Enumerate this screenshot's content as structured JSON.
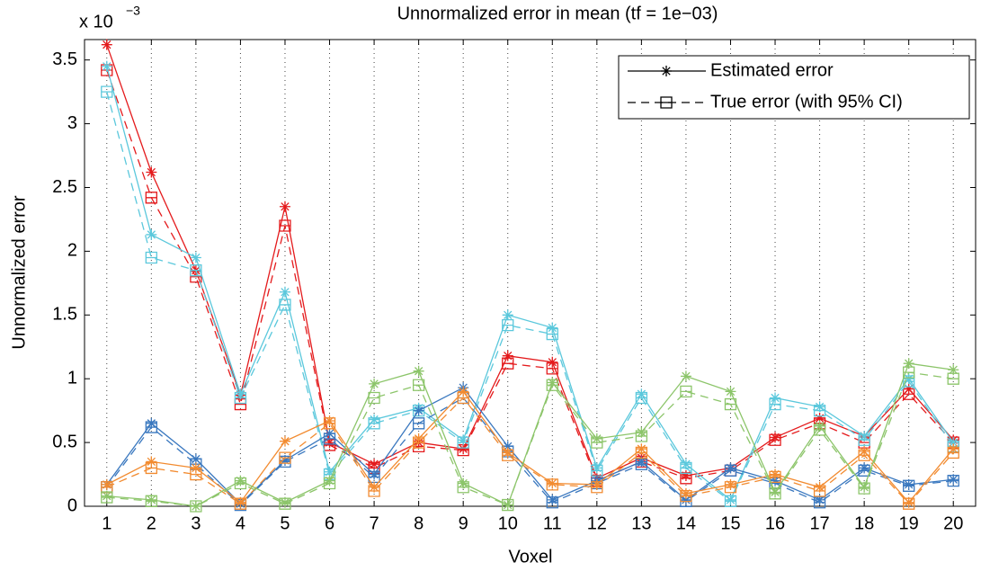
{
  "chart_data": {
    "type": "line",
    "title": "Unnormalized error in mean (tf = 1e−03)",
    "xlabel": "Voxel",
    "ylabel": "Unnormalized error",
    "y_multiplier": "x 10",
    "y_exponent": "−3",
    "x": [
      1,
      2,
      3,
      4,
      5,
      6,
      7,
      8,
      9,
      10,
      11,
      12,
      13,
      14,
      15,
      16,
      17,
      18,
      19,
      20
    ],
    "xlim": [
      0.5,
      20.5
    ],
    "xticks": [
      1,
      2,
      3,
      4,
      5,
      6,
      7,
      8,
      9,
      10,
      11,
      12,
      13,
      14,
      15,
      16,
      17,
      18,
      19,
      20
    ],
    "ylim": [
      0,
      3.66
    ],
    "yticks": [
      0,
      0.5,
      1,
      1.5,
      2,
      2.5,
      3,
      3.5
    ],
    "xgrid": true,
    "legend": {
      "position": "upper right",
      "entries": [
        "Estimated error",
        "True error (with 95% CI)"
      ],
      "line_styles": [
        "solid",
        "dashed"
      ],
      "markers": [
        "asterisk",
        "square"
      ]
    },
    "series": [
      {
        "color": "#e41a1c",
        "line_style": "solid",
        "marker": "asterisk",
        "values": [
          3.62,
          2.62,
          1.85,
          0.87,
          2.35,
          0.5,
          0.33,
          0.5,
          0.45,
          1.18,
          1.13,
          0.22,
          0.38,
          0.24,
          0.3,
          0.54,
          0.69,
          0.55,
          0.92,
          0.52
        ]
      },
      {
        "color": "#e41a1c",
        "line_style": "dashed",
        "marker": "square",
        "values": [
          3.42,
          2.42,
          1.8,
          0.8,
          2.2,
          0.48,
          0.3,
          0.47,
          0.44,
          1.12,
          1.08,
          0.2,
          0.35,
          0.22,
          0.28,
          0.52,
          0.65,
          0.5,
          0.88,
          0.5
        ]
      },
      {
        "color": "#5bc8dc",
        "line_style": "solid",
        "marker": "asterisk",
        "values": [
          3.45,
          2.13,
          1.95,
          0.88,
          1.68,
          0.27,
          0.68,
          0.77,
          0.52,
          1.5,
          1.4,
          0.3,
          0.88,
          0.33,
          0.05,
          0.85,
          0.78,
          0.55,
          1.0,
          0.5
        ]
      },
      {
        "color": "#5bc8dc",
        "line_style": "dashed",
        "marker": "square",
        "values": [
          3.25,
          1.95,
          1.85,
          0.85,
          1.58,
          0.25,
          0.65,
          0.75,
          0.5,
          1.42,
          1.35,
          0.28,
          0.85,
          0.3,
          0.04,
          0.8,
          0.75,
          0.52,
          0.98,
          0.47
        ]
      },
      {
        "color": "#3a78bf",
        "line_style": "solid",
        "marker": "asterisk",
        "values": [
          0.17,
          0.65,
          0.37,
          0.02,
          0.36,
          0.57,
          0.25,
          0.75,
          0.93,
          0.47,
          0.05,
          0.2,
          0.35,
          0.05,
          0.3,
          0.2,
          0.05,
          0.3,
          0.17,
          0.21
        ]
      },
      {
        "color": "#3a78bf",
        "line_style": "dashed",
        "marker": "square",
        "values": [
          0.15,
          0.62,
          0.33,
          0.01,
          0.35,
          0.53,
          0.23,
          0.65,
          0.85,
          0.43,
          0.03,
          0.18,
          0.33,
          0.04,
          0.28,
          0.18,
          0.03,
          0.28,
          0.16,
          0.2
        ]
      },
      {
        "color": "#f28b30",
        "line_style": "solid",
        "marker": "asterisk",
        "values": [
          0.17,
          0.35,
          0.3,
          0.03,
          0.51,
          0.67,
          0.15,
          0.53,
          0.9,
          0.42,
          0.18,
          0.17,
          0.45,
          0.1,
          0.17,
          0.25,
          0.15,
          0.43,
          0.03,
          0.45
        ]
      },
      {
        "color": "#f28b30",
        "line_style": "dashed",
        "marker": "square",
        "values": [
          0.15,
          0.3,
          0.25,
          0.02,
          0.38,
          0.65,
          0.12,
          0.5,
          0.85,
          0.4,
          0.17,
          0.15,
          0.42,
          0.08,
          0.15,
          0.23,
          0.12,
          0.4,
          0.02,
          0.42
        ]
      },
      {
        "color": "#8cc56a",
        "line_style": "solid",
        "marker": "asterisk",
        "values": [
          0.08,
          0.05,
          0.0,
          0.2,
          0.03,
          0.2,
          0.96,
          1.06,
          0.18,
          0.01,
          0.97,
          0.53,
          0.58,
          1.02,
          0.9,
          0.11,
          0.63,
          0.15,
          1.12,
          1.07
        ]
      },
      {
        "color": "#8cc56a",
        "line_style": "dashed",
        "marker": "square",
        "values": [
          0.07,
          0.04,
          0.0,
          0.18,
          0.02,
          0.18,
          0.85,
          0.95,
          0.15,
          0.01,
          0.95,
          0.5,
          0.55,
          0.9,
          0.8,
          0.1,
          0.6,
          0.14,
          1.05,
          1.0
        ]
      }
    ]
  }
}
